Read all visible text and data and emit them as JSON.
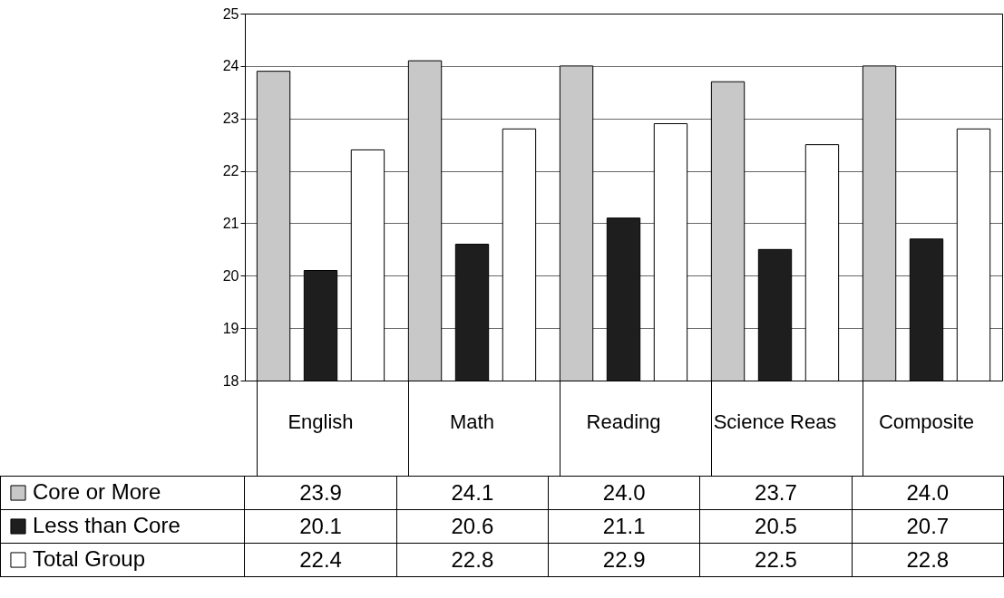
{
  "chart_data": {
    "type": "bar",
    "categories": [
      "English",
      "Math",
      "Reading",
      "Science Reas",
      "Composite"
    ],
    "series": [
      {
        "name": "Core or More",
        "color": "#c8c8c8",
        "values": [
          23.9,
          24.1,
          24.0,
          23.7,
          24.0
        ],
        "value_labels": [
          "23.9",
          "24.1",
          "24.0",
          "23.7",
          "24.0"
        ]
      },
      {
        "name": "Less than Core",
        "color": "#1e1e1e",
        "values": [
          20.1,
          20.6,
          21.1,
          20.5,
          20.7
        ],
        "value_labels": [
          "20.1",
          "20.6",
          "21.1",
          "20.5",
          "20.7"
        ]
      },
      {
        "name": "Total Group",
        "color": "#ffffff",
        "values": [
          22.4,
          22.8,
          22.9,
          22.5,
          22.8
        ],
        "value_labels": [
          "22.4",
          "22.8",
          "22.9",
          "22.5",
          "22.8"
        ]
      }
    ],
    "ylim": [
      18,
      25
    ],
    "yticks": [
      18,
      19,
      20,
      21,
      22,
      23,
      24,
      25
    ],
    "grid": "y",
    "legend": "bottom left"
  }
}
